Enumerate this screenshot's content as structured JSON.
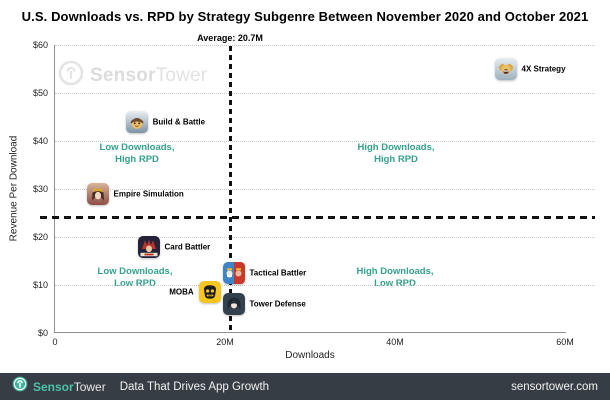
{
  "title": "U.S. Downloads vs. RPD by Strategy Subgenre Between November 2020 and October 2021",
  "watermark": {
    "brand_bold": "Sensor",
    "brand_light": "Tower"
  },
  "chart_data": {
    "type": "scatter",
    "title": "U.S. Downloads vs. RPD by Strategy Subgenre Between November 2020 and October 2021",
    "xlabel": "Downloads",
    "ylabel": "Revenue Per Download",
    "xlim": [
      0,
      60
    ],
    "ylim": [
      0,
      60
    ],
    "x_unit": "millions of downloads",
    "y_unit": "USD",
    "grid": "horizontal-dotted",
    "x_ticks": [
      {
        "value": 0,
        "label": "0"
      },
      {
        "value": 20,
        "label": "20M"
      },
      {
        "value": 40,
        "label": "40M"
      },
      {
        "value": 60,
        "label": "60M"
      }
    ],
    "y_ticks": [
      {
        "value": 0,
        "label": "$0"
      },
      {
        "value": 10,
        "label": "$10"
      },
      {
        "value": 20,
        "label": "$20"
      },
      {
        "value": 30,
        "label": "$30"
      },
      {
        "value": 40,
        "label": "$40"
      },
      {
        "value": 50,
        "label": "$50"
      },
      {
        "value": 60,
        "label": "$60"
      }
    ],
    "average_label": "Average: 20.7M",
    "average_downloads_m": 20.7,
    "average_rpd_usd": 24,
    "points": [
      {
        "name": "4X Strategy",
        "icon": "4x-strategy-app-icon",
        "downloads_m": 53,
        "rpd_usd": 55,
        "label_side": "right"
      },
      {
        "name": "Build & Battle",
        "icon": "build-battle-app-icon",
        "downloads_m": 9.6,
        "rpd_usd": 44,
        "label_side": "right"
      },
      {
        "name": "Empire Simulation",
        "icon": "empire-simulation-app-icon",
        "downloads_m": 5,
        "rpd_usd": 29,
        "label_side": "right"
      },
      {
        "name": "Card Battler",
        "icon": "card-battler-app-icon",
        "downloads_m": 11,
        "rpd_usd": 18,
        "label_side": "right"
      },
      {
        "name": "Tactical Battler",
        "icon": "tactical-battler-app-icon",
        "downloads_m": 21,
        "rpd_usd": 12.5,
        "label_side": "right"
      },
      {
        "name": "MOBA",
        "icon": "moba-app-icon",
        "downloads_m": 18.2,
        "rpd_usd": 8.5,
        "label_side": "left"
      },
      {
        "name": "Tower Defense",
        "icon": "tower-defense-app-icon",
        "downloads_m": 21,
        "rpd_usd": 6,
        "label_side": "right"
      }
    ],
    "quadrant_labels": [
      {
        "line1": "Low Downloads,",
        "line2": "High RPD"
      },
      {
        "line1": "High Downloads,",
        "line2": "High RPD"
      },
      {
        "line1": "Low Downloads,",
        "line2": "Low RPD"
      },
      {
        "line1": "High Downloads,",
        "line2": "Low RPD"
      }
    ]
  },
  "colors": {
    "quadrant_text": "#35a18c",
    "brand_teal": "#3fb39c",
    "footer_bg": "#363d45",
    "dashed_line": "#111111"
  },
  "footer": {
    "brand_bold": "Sensor",
    "brand_light": "Tower",
    "tagline": "Data That Drives App Growth",
    "website": "sensortower.com"
  }
}
